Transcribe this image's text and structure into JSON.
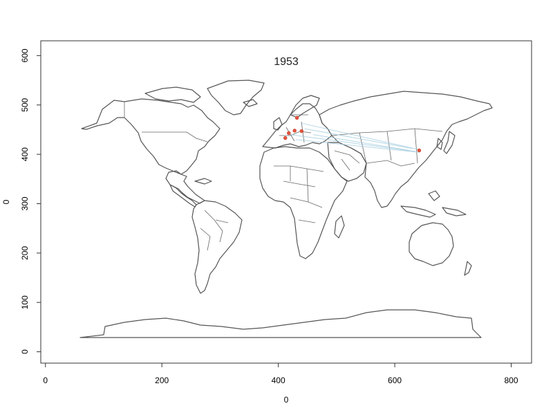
{
  "chart_data": {
    "type": "map",
    "title": "1953",
    "xlabel": "0",
    "ylabel": "0",
    "xlim": [
      -8,
      835
    ],
    "ylim": [
      -23,
      630
    ],
    "x_ticks": [
      0,
      200,
      400,
      600,
      800
    ],
    "y_ticks": [
      0,
      100,
      200,
      300,
      400,
      500,
      600
    ],
    "grid": false,
    "points": [
      {
        "x": 432,
        "y": 474
      },
      {
        "x": 428,
        "y": 448
      },
      {
        "x": 440,
        "y": 447
      },
      {
        "x": 418,
        "y": 443
      },
      {
        "x": 412,
        "y": 433
      },
      {
        "x": 642,
        "y": 408
      }
    ],
    "routes": [
      {
        "from": [
          440,
          463
        ],
        "to": [
          640,
          410
        ]
      },
      {
        "from": [
          445,
          452
        ],
        "to": [
          630,
          412
        ]
      },
      {
        "from": [
          420,
          440
        ],
        "to": [
          635,
          406
        ]
      },
      {
        "from": [
          430,
          430
        ],
        "to": [
          642,
          404
        ]
      },
      {
        "from": [
          460,
          440
        ],
        "to": [
          625,
          408
        ]
      }
    ],
    "colors": {
      "land_outline": "#555555",
      "point": "#e4573d",
      "route": "#a8cfe0"
    }
  }
}
